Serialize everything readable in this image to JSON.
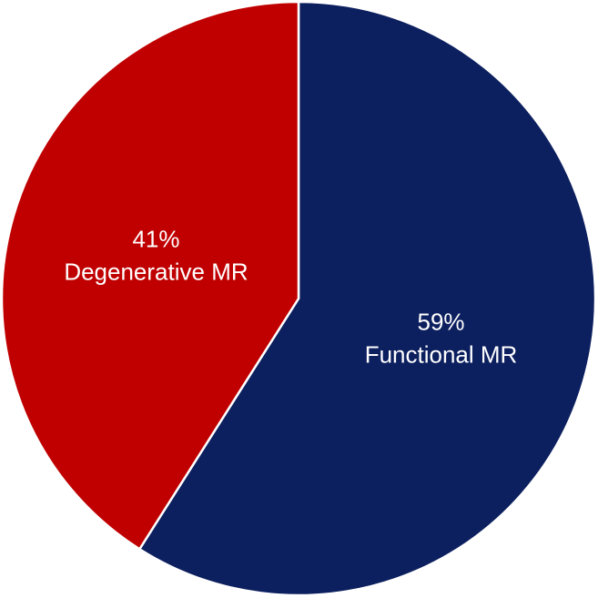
{
  "chart_data": {
    "type": "pie",
    "categories": [
      "Functional MR",
      "Degenerative MR"
    ],
    "values": [
      59,
      41
    ],
    "value_labels": [
      "59%",
      "41%"
    ],
    "colors": [
      "#0c1f5e",
      "#c00000"
    ]
  }
}
